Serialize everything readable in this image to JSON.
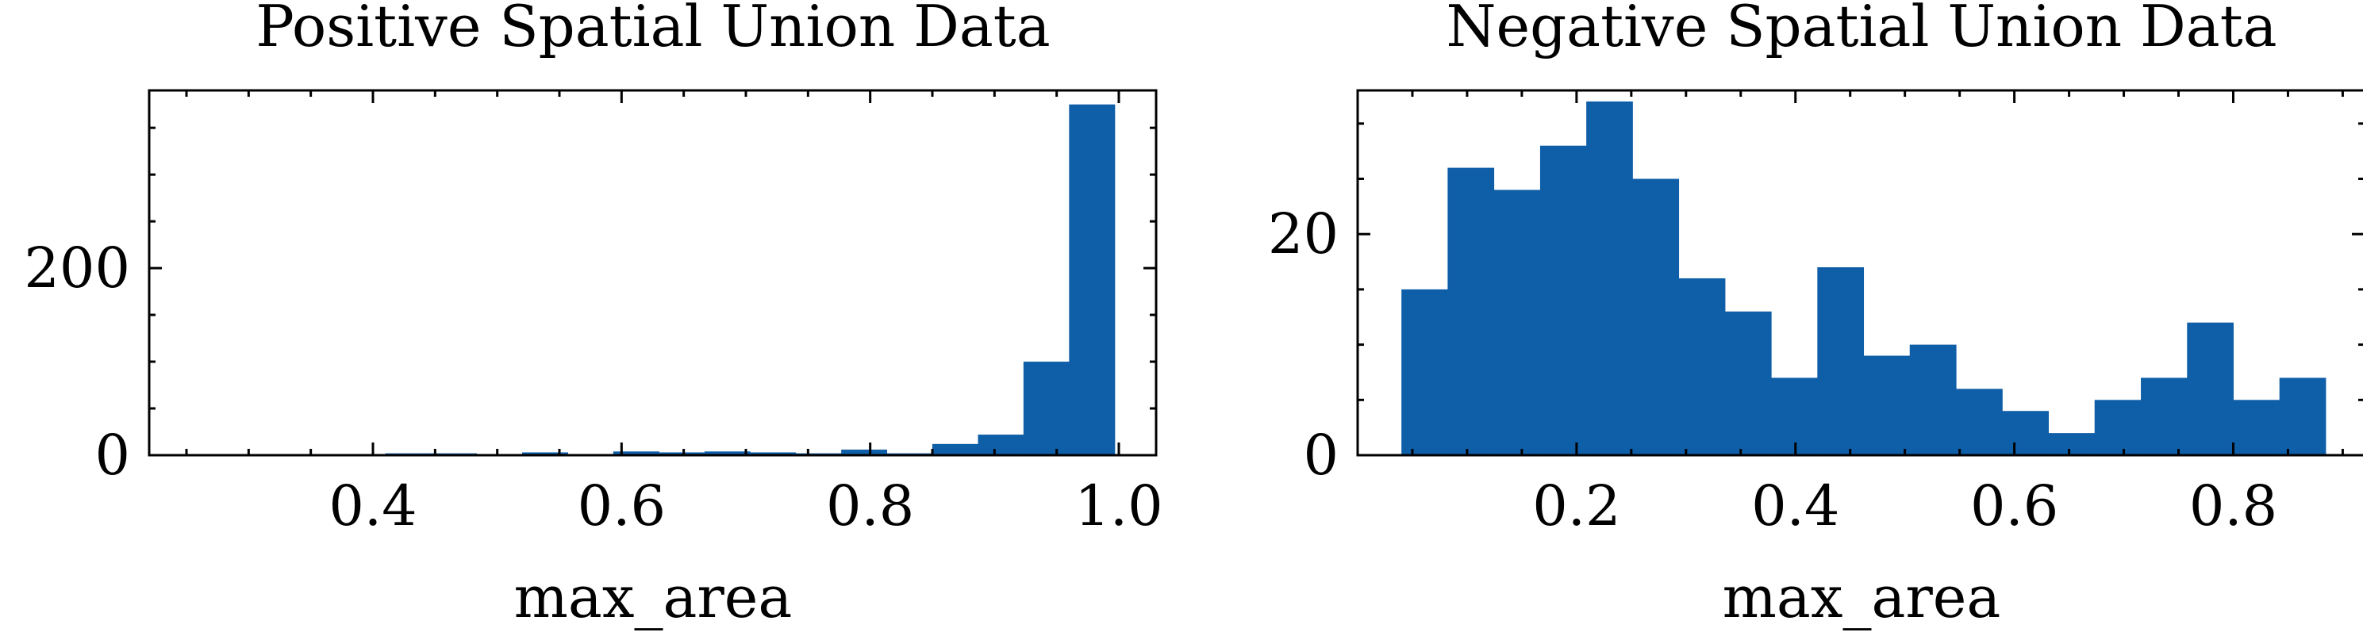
{
  "chart_data": [
    {
      "type": "bar",
      "subtype": "histogram",
      "title": "Positive Spatial Union Data",
      "xlabel": "max_area",
      "ylabel": "",
      "xlim": [
        0.22,
        1.03
      ],
      "ylim": [
        0,
        390
      ],
      "bin_edges": [
        0.3,
        0.3367,
        0.3733,
        0.41,
        0.4467,
        0.4833,
        0.52,
        0.5567,
        0.5933,
        0.63,
        0.6667,
        0.7033,
        0.74,
        0.7767,
        0.8133,
        0.85,
        0.8867,
        0.9233,
        0.96,
        0.9967
      ],
      "values": [
        0,
        0,
        1,
        2,
        2,
        0,
        3,
        0,
        4,
        3,
        4,
        3,
        2,
        6,
        2,
        12,
        22,
        100,
        375
      ],
      "x_ticks": [
        0.4,
        0.6,
        0.8,
        1.0
      ],
      "x_tick_labels": [
        "0.4",
        "0.6",
        "0.8",
        "1.0"
      ],
      "y_ticks": [
        0,
        200
      ],
      "y_tick_labels": [
        "0",
        "200"
      ],
      "x_minor_step": 0.05,
      "y_minor_step": 50,
      "color": "#0f5ea8",
      "grid": false,
      "legend": false
    },
    {
      "type": "bar",
      "subtype": "histogram",
      "title": "Negative Spatial Union Data",
      "xlabel": "max_area",
      "ylabel": "",
      "xlim": [
        0.0,
        0.92
      ],
      "ylim": [
        0,
        33
      ],
      "bin_edges": [
        0.04,
        0.0822,
        0.1244,
        0.1667,
        0.2089,
        0.2511,
        0.2933,
        0.3356,
        0.3778,
        0.42,
        0.4622,
        0.5044,
        0.5467,
        0.5889,
        0.6311,
        0.6733,
        0.7156,
        0.7578,
        0.8,
        0.8422,
        0.8844
      ],
      "values": [
        15,
        26,
        24,
        28,
        32,
        25,
        16,
        13,
        7,
        17,
        9,
        10,
        6,
        4,
        2,
        5,
        7,
        12,
        5,
        7
      ],
      "x_ticks": [
        0.2,
        0.4,
        0.6,
        0.8
      ],
      "x_tick_labels": [
        "0.2",
        "0.4",
        "0.6",
        "0.8"
      ],
      "y_ticks": [
        0,
        20
      ],
      "y_tick_labels": [
        "0",
        "20"
      ],
      "x_minor_step": 0.05,
      "y_minor_step": 5,
      "color": "#0f5ea8",
      "grid": false,
      "legend": false
    }
  ]
}
